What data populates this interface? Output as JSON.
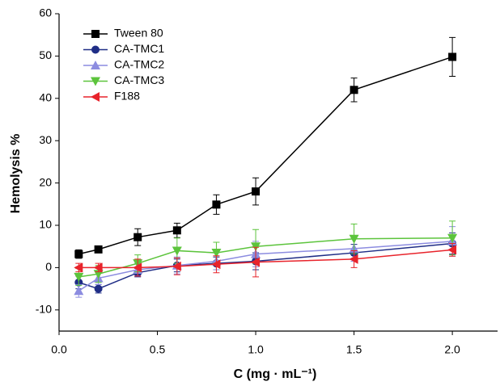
{
  "chart_data": {
    "type": "line",
    "y_label": "Hemolysis %",
    "x_label": "C (mg · mL⁻¹)",
    "x": [
      0.1,
      0.2,
      0.4,
      0.6,
      0.8,
      1.0,
      1.5,
      2.0
    ],
    "xlim": [
      0,
      2.23
    ],
    "xticks": [
      {
        "value": 0,
        "label": "0.0"
      },
      {
        "value": 0.5,
        "label": "0.5"
      },
      {
        "value": 1,
        "label": "1.0"
      },
      {
        "value": 1.5,
        "label": "1.5"
      },
      {
        "value": 2,
        "label": "2.0"
      }
    ],
    "ylim": [
      -15,
      60
    ],
    "yticks": [
      -10,
      0,
      10,
      20,
      30,
      40,
      50,
      60
    ],
    "legend": "upper-left",
    "series": [
      {
        "name": "Tween 80",
        "color": "#000000",
        "marker": "square",
        "values": [
          3.2,
          4.3,
          7.2,
          8.8,
          14.9,
          18,
          42,
          49.8
        ],
        "errors": [
          1,
          0.8,
          2,
          1.7,
          2.3,
          3.2,
          2.8,
          4.6
        ]
      },
      {
        "name": "CA-TMC1",
        "color": "#1f2d86",
        "marker": "circle",
        "values": [
          -3.5,
          -5,
          -1.2,
          0.5,
          1,
          1.5,
          3.5,
          5.7
        ],
        "errors": [
          1.5,
          1,
          1,
          1.5,
          1.5,
          2,
          2,
          2.5
        ]
      },
      {
        "name": "CA-TMC2",
        "color": "#8c8ce0",
        "marker": "triangle-up",
        "values": [
          -5.5,
          -2.5,
          -0.5,
          0.5,
          1.5,
          3.2,
          4.5,
          6.2
        ],
        "errors": [
          1.5,
          1.5,
          1.5,
          2,
          2,
          3,
          3,
          3.5
        ]
      },
      {
        "name": "CA-TMC3",
        "color": "#5cc43c",
        "marker": "triangle-down",
        "values": [
          -2.2,
          -1.5,
          1,
          4,
          3.5,
          5,
          6.8,
          7
        ],
        "errors": [
          2,
          2,
          2,
          3,
          2.5,
          4,
          3.5,
          4
        ]
      },
      {
        "name": "F188",
        "color": "#e8232b",
        "marker": "triangle-left",
        "values": [
          0,
          0,
          0,
          0.3,
          0.8,
          1.3,
          2,
          4.2
        ],
        "errors": [
          1,
          1,
          2,
          2,
          2,
          3.5,
          2,
          1.5
        ]
      }
    ]
  }
}
